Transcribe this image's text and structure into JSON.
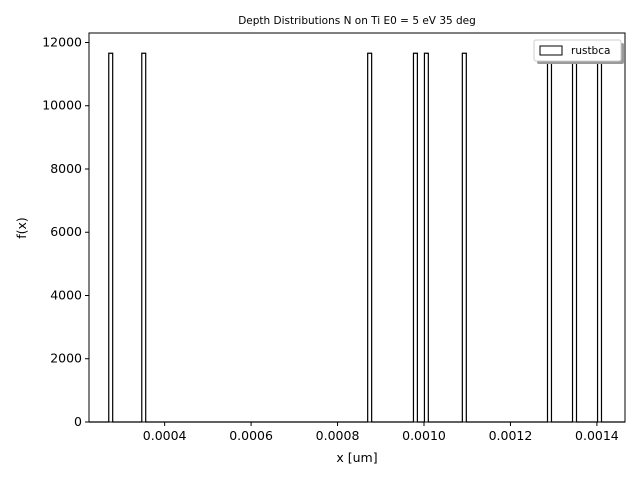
{
  "chart_data": {
    "type": "bar",
    "title": "Depth Distributions N on Ti E0 = 5 eV 35 deg",
    "xlabel": "x [um]",
    "ylabel": "f(x)",
    "xlim": [
      0.000225,
      0.001465
    ],
    "ylim": [
      0,
      12300
    ],
    "xticks": [
      {
        "value": 0.0004,
        "label": "0.0004"
      },
      {
        "value": 0.0006,
        "label": "0.0006"
      },
      {
        "value": 0.0008,
        "label": "0.0008"
      },
      {
        "value": 0.001,
        "label": "0.0010"
      },
      {
        "value": 0.0012,
        "label": "0.0012"
      },
      {
        "value": 0.0014,
        "label": "0.0014"
      }
    ],
    "yticks": [
      {
        "value": 0,
        "label": "0"
      },
      {
        "value": 2000,
        "label": "2000"
      },
      {
        "value": 4000,
        "label": "4000"
      },
      {
        "value": 6000,
        "label": "6000"
      },
      {
        "value": 8000,
        "label": "8000"
      },
      {
        "value": 10000,
        "label": "10000"
      },
      {
        "value": 12000,
        "label": "12000"
      }
    ],
    "grid": false,
    "legend": {
      "position": "top-right"
    },
    "series": [
      {
        "name": "rustbca",
        "style": "step-histogram",
        "color": "#000000",
        "fill": "none",
        "bins": [
          {
            "x0": 0.0002707,
            "x1": 0.0002798,
            "value": 11660
          },
          {
            "x0": 0.0003471,
            "x1": 0.0003562,
            "value": 11660
          },
          {
            "x0": 0.0008697,
            "x1": 0.0008789,
            "value": 11660
          },
          {
            "x0": 0.0009756,
            "x1": 0.0009847,
            "value": 11660
          },
          {
            "x0": 0.001001,
            "x1": 0.00101,
            "value": 11660
          },
          {
            "x0": 0.0010887,
            "x1": 0.0010979,
            "value": 11660
          },
          {
            "x0": 0.0012857,
            "x1": 0.0012949,
            "value": 11660
          },
          {
            "x0": 0.0013436,
            "x1": 0.0013528,
            "value": 11660
          },
          {
            "x0": 0.0014015,
            "x1": 0.0014106,
            "value": 11660
          }
        ]
      }
    ]
  }
}
